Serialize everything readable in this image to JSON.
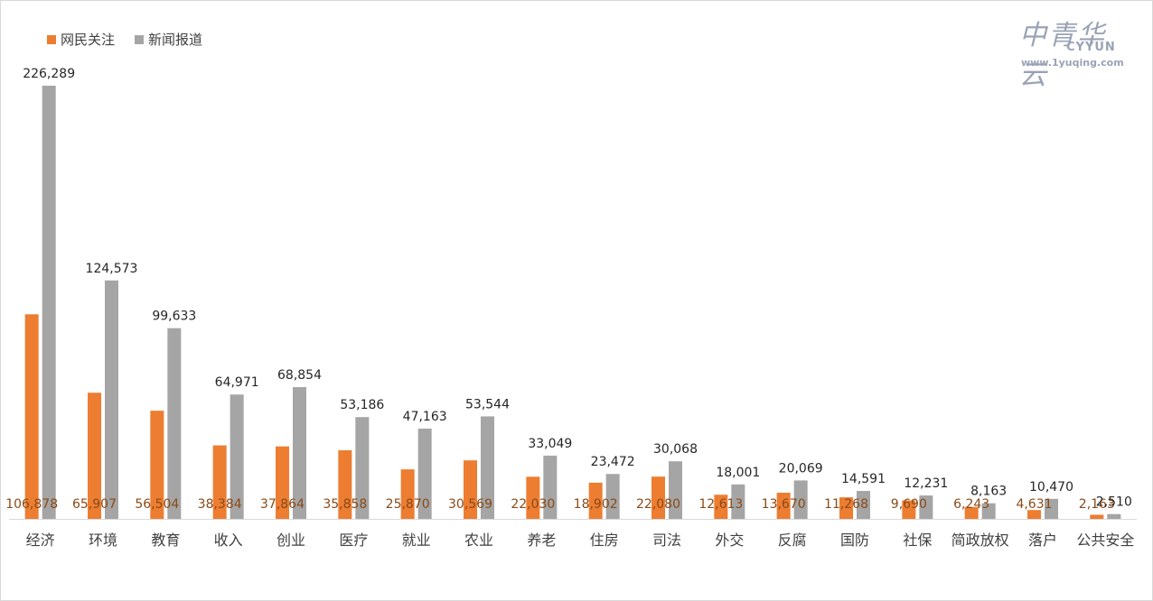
{
  "legend": {
    "series1": "网民关注",
    "series2": "新闻报道"
  },
  "logo": {
    "cn": "中青华云",
    "en": "CYYUN",
    "url": "www.1yuqing.com"
  },
  "colors": {
    "series1": "#ed7d31",
    "series2": "#a5a5a5"
  },
  "chart_data": {
    "type": "bar",
    "categories": [
      "经济",
      "环境",
      "教育",
      "收入",
      "创业",
      "医疗",
      "就业",
      "农业",
      "养老",
      "住房",
      "司法",
      "外交",
      "反腐",
      "国防",
      "社保",
      "简政放权",
      "落户",
      "公共安全"
    ],
    "series": [
      {
        "name": "网民关注",
        "values": [
          106878,
          65907,
          56504,
          38384,
          37864,
          35858,
          25870,
          30569,
          22030,
          18902,
          22080,
          12613,
          13670,
          11268,
          9690,
          6243,
          4631,
          2163
        ],
        "labels": [
          "106,878",
          "65,907",
          "56,504",
          "38,384",
          "37,864",
          "35,858",
          "25,870",
          "30,569",
          "22,030",
          "18,902",
          "22,080",
          "12,613",
          "13,670",
          "11,268",
          "9,690",
          "6,243",
          "4,631",
          "2,163"
        ]
      },
      {
        "name": "新闻报道",
        "values": [
          226289,
          124573,
          99633,
          64971,
          68854,
          53186,
          47163,
          53544,
          33049,
          23472,
          30068,
          18001,
          20069,
          14591,
          12231,
          8163,
          10470,
          2510
        ],
        "labels": [
          "226,289",
          "124,573",
          "99,633",
          "64,971",
          "68,854",
          "53,186",
          "47,163",
          "53,544",
          "33,049",
          "23,472",
          "30,068",
          "18,001",
          "20,069",
          "14,591",
          "12,231",
          "8,163",
          "10,470",
          "2,510"
        ]
      }
    ],
    "ylim": [
      0,
      235000
    ],
    "grid": false,
    "legend_position": "top-left"
  }
}
